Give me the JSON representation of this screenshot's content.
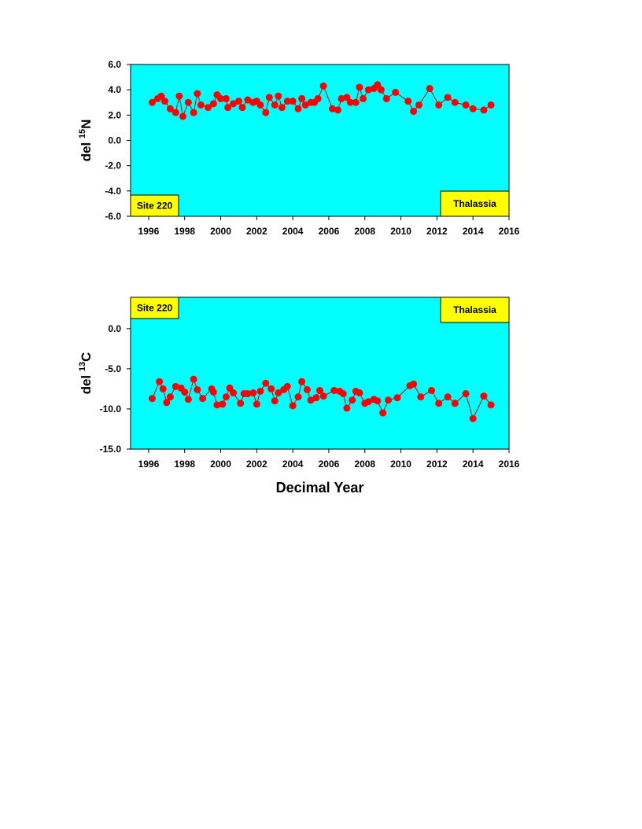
{
  "chart_data": [
    {
      "type": "line",
      "ylabel": [
        "del ",
        "15",
        "N"
      ],
      "x": [
        1996.2,
        1996.5,
        1996.7,
        1996.9,
        1997.2,
        1997.5,
        1997.7,
        1997.9,
        1998.2,
        1998.5,
        1998.7,
        1998.9,
        1999.3,
        1999.6,
        1999.8,
        2000.0,
        2000.3,
        2000.4,
        2000.7,
        2001.0,
        2001.2,
        2001.5,
        2001.8,
        2002.0,
        2002.2,
        2002.5,
        2002.7,
        2003.0,
        2003.2,
        2003.4,
        2003.7,
        2004.0,
        2004.3,
        2004.5,
        2004.7,
        2005.0,
        2005.2,
        2005.4,
        2005.7,
        2006.2,
        2006.5,
        2006.7,
        2007.0,
        2007.2,
        2007.5,
        2007.7,
        2007.9,
        2008.2,
        2008.5,
        2008.7,
        2008.9,
        2009.2,
        2009.7,
        2010.4,
        2010.7,
        2011.0,
        2011.6,
        2012.1,
        2012.6,
        2013.0,
        2013.6,
        2014.0,
        2014.6,
        2015.0
      ],
      "values": [
        3.0,
        3.3,
        3.5,
        3.1,
        2.5,
        2.2,
        3.5,
        1.9,
        3.0,
        2.2,
        3.7,
        2.8,
        2.6,
        2.9,
        3.6,
        3.3,
        3.3,
        2.6,
        2.9,
        3.1,
        2.6,
        3.2,
        3.0,
        3.1,
        2.8,
        2.2,
        3.4,
        2.8,
        3.5,
        2.6,
        3.1,
        3.1,
        2.5,
        3.3,
        2.8,
        3.0,
        3.0,
        3.3,
        4.3,
        2.5,
        2.4,
        3.3,
        3.4,
        3.0,
        3.0,
        4.2,
        3.3,
        4.0,
        4.1,
        4.4,
        4.0,
        3.3,
        3.8,
        3.1,
        2.3,
        2.8,
        4.1,
        2.8,
        3.4,
        3.0,
        2.8,
        2.5,
        2.4,
        2.8
      ],
      "color": "#ff0000",
      "line_color": "#b00000",
      "background": "#00ffff",
      "xlim": [
        1995,
        2016
      ],
      "xticks": [
        1996,
        1998,
        2000,
        2002,
        2004,
        2006,
        2008,
        2010,
        2012,
        2014,
        2016
      ],
      "ylim": [
        -6,
        6
      ],
      "yticks": [
        {
          "value": -6,
          "label": "-6.0"
        },
        {
          "value": -4,
          "label": "-4.0"
        },
        {
          "value": -2,
          "label": "-2.0"
        },
        {
          "value": 0,
          "label": "0.0"
        },
        {
          "value": 2,
          "label": "2.0"
        },
        {
          "value": 4,
          "label": "4.0"
        },
        {
          "value": 6,
          "label": "6.0"
        }
      ],
      "annotations": [
        {
          "text": "Site 220",
          "position": "bottom-left"
        },
        {
          "text": "Thalassia",
          "position": "bottom-right"
        }
      ]
    },
    {
      "type": "line",
      "ylabel": [
        "del ",
        "13",
        "C"
      ],
      "xlabel": "Decimal Year",
      "x": [
        1996.2,
        1996.6,
        1996.8,
        1997.0,
        1997.2,
        1997.5,
        1997.8,
        1998.0,
        1998.2,
        1998.5,
        1998.7,
        1999.0,
        1999.5,
        1999.6,
        1999.8,
        2000.1,
        2000.3,
        2000.5,
        2000.7,
        2001.1,
        2001.3,
        2001.5,
        2001.8,
        2002.0,
        2002.2,
        2002.5,
        2002.8,
        2003.0,
        2003.2,
        2003.5,
        2003.7,
        2004.0,
        2004.3,
        2004.5,
        2004.8,
        2005.0,
        2005.3,
        2005.5,
        2005.7,
        2006.3,
        2006.6,
        2006.8,
        2007.0,
        2007.3,
        2007.5,
        2007.7,
        2008.0,
        2008.2,
        2008.5,
        2008.7,
        2009.0,
        2009.3,
        2009.8,
        2010.5,
        2010.7,
        2011.1,
        2011.7,
        2012.1,
        2012.6,
        2013.0,
        2013.6,
        2014.0,
        2014.6,
        2015.0
      ],
      "values": [
        -8.7,
        -6.6,
        -7.5,
        -9.2,
        -8.5,
        -7.2,
        -7.4,
        -7.9,
        -8.8,
        -6.3,
        -7.6,
        -8.7,
        -7.5,
        -7.9,
        -9.5,
        -9.4,
        -8.5,
        -7.4,
        -8.0,
        -9.3,
        -8.1,
        -8.1,
        -8.0,
        -9.4,
        -7.8,
        -6.8,
        -7.5,
        -9.0,
        -8.0,
        -7.6,
        -7.2,
        -9.6,
        -8.5,
        -6.6,
        -7.6,
        -8.9,
        -8.6,
        -7.7,
        -8.4,
        -7.7,
        -7.8,
        -8.1,
        -9.9,
        -8.9,
        -7.8,
        -8.0,
        -9.3,
        -9.1,
        -8.8,
        -9.0,
        -10.5,
        -8.9,
        -8.6,
        -7.1,
        -6.9,
        -8.5,
        -7.7,
        -9.3,
        -8.5,
        -9.3,
        -8.1,
        -11.2,
        -8.4,
        -9.5
      ],
      "color": "#ff0000",
      "line_color": "#b00000",
      "background": "#00ffff",
      "xlim": [
        1995,
        2016
      ],
      "xticks": [
        1996,
        1998,
        2000,
        2002,
        2004,
        2006,
        2008,
        2010,
        2012,
        2014,
        2016
      ],
      "ylim": [
        -15,
        3.9
      ],
      "yticks": [
        {
          "value": -15,
          "label": "-15.0"
        },
        {
          "value": -10,
          "label": "-10.0"
        },
        {
          "value": -5,
          "label": "-5.0"
        },
        {
          "value": 0,
          "label": "0.0"
        }
      ],
      "annotations": [
        {
          "text": "Site 220",
          "position": "top-left"
        },
        {
          "text": "Thalassia",
          "position": "top-right"
        }
      ]
    }
  ]
}
